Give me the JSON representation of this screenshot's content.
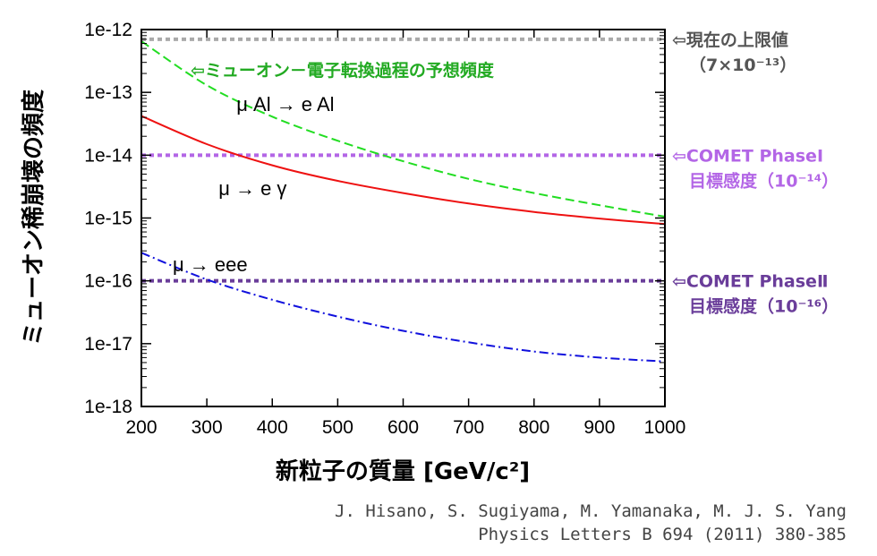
{
  "chart_data": {
    "type": "line",
    "xlabel": "新粒子の質量 [GeV/c²]",
    "ylabel": "ミューオン稀崩壊の頻度",
    "xlim": [
      200,
      1000
    ],
    "ylim": [
      1e-18,
      1e-12
    ],
    "yscale": "log",
    "x_ticks": [
      "200",
      "300",
      "400",
      "500",
      "600",
      "700",
      "800",
      "900",
      "1000"
    ],
    "y_ticks": [
      "1e-12",
      "1e-13",
      "1e-14",
      "1e-15",
      "1e-16",
      "1e-17",
      "1e-18"
    ],
    "series": [
      {
        "name": "μ Al → e Al",
        "color": "#22dd22",
        "style": "dashed",
        "x": [
          200,
          300,
          400,
          500,
          600,
          700,
          800,
          900,
          1000
        ],
        "y": [
          6.5e-13,
          1.3e-13,
          4.1e-14,
          1.7e-14,
          8e-15,
          4.2e-15,
          2.5e-15,
          1.6e-15,
          1.05e-15
        ]
      },
      {
        "name": "μ → e γ",
        "color": "#ee1111",
        "style": "solid",
        "x": [
          200,
          300,
          400,
          500,
          600,
          700,
          800,
          900,
          1000
        ],
        "y": [
          4.2e-14,
          1.5e-14,
          6.9e-15,
          3.9e-15,
          2.5e-15,
          1.7e-15,
          1.25e-15,
          9.8e-16,
          8e-16
        ]
      },
      {
        "name": "μ → eee",
        "color": "#1111dd",
        "style": "dashdot",
        "x": [
          200,
          300,
          400,
          500,
          600,
          700,
          800,
          900,
          1000
        ],
        "y": [
          2.8e-16,
          1.05e-16,
          5e-17,
          2.7e-17,
          1.6e-17,
          1.05e-17,
          7.5e-18,
          6e-18,
          5.2e-18
        ]
      }
    ],
    "reference_lines": [
      {
        "y": 7e-13,
        "color": "#aaaaaa",
        "lines": [
          "⇦現在の上限値",
          "（7×10⁻¹³）"
        ]
      },
      {
        "y": 1e-14,
        "color": "#b366e6",
        "lines": [
          "⇦COMET PhaseⅠ",
          "目標感度（10⁻¹⁴）"
        ]
      },
      {
        "y": 1e-16,
        "color": "#6a3d9a",
        "lines": [
          "⇦COMET PhaseⅡ",
          "目標感度（10⁻¹⁶）"
        ]
      }
    ],
    "annotations": [
      {
        "text": "⇦ミューオン－電子転換過程の予想頻度",
        "color": "#22aa22"
      },
      {
        "text": "μ Al → e Al",
        "x": 420,
        "y": 6.4e-14
      },
      {
        "text": "μ → e γ",
        "x": 370,
        "y": 2.9e-15
      },
      {
        "text": "μ → eee",
        "x": 305,
        "y": 1.8e-16
      }
    ]
  },
  "citation": {
    "line1": "J. Hisano, S. Sugiyama, M. Yamanaka, M. J. S. Yang",
    "line2": "Physics Letters B 694 (2011) 380-385"
  }
}
